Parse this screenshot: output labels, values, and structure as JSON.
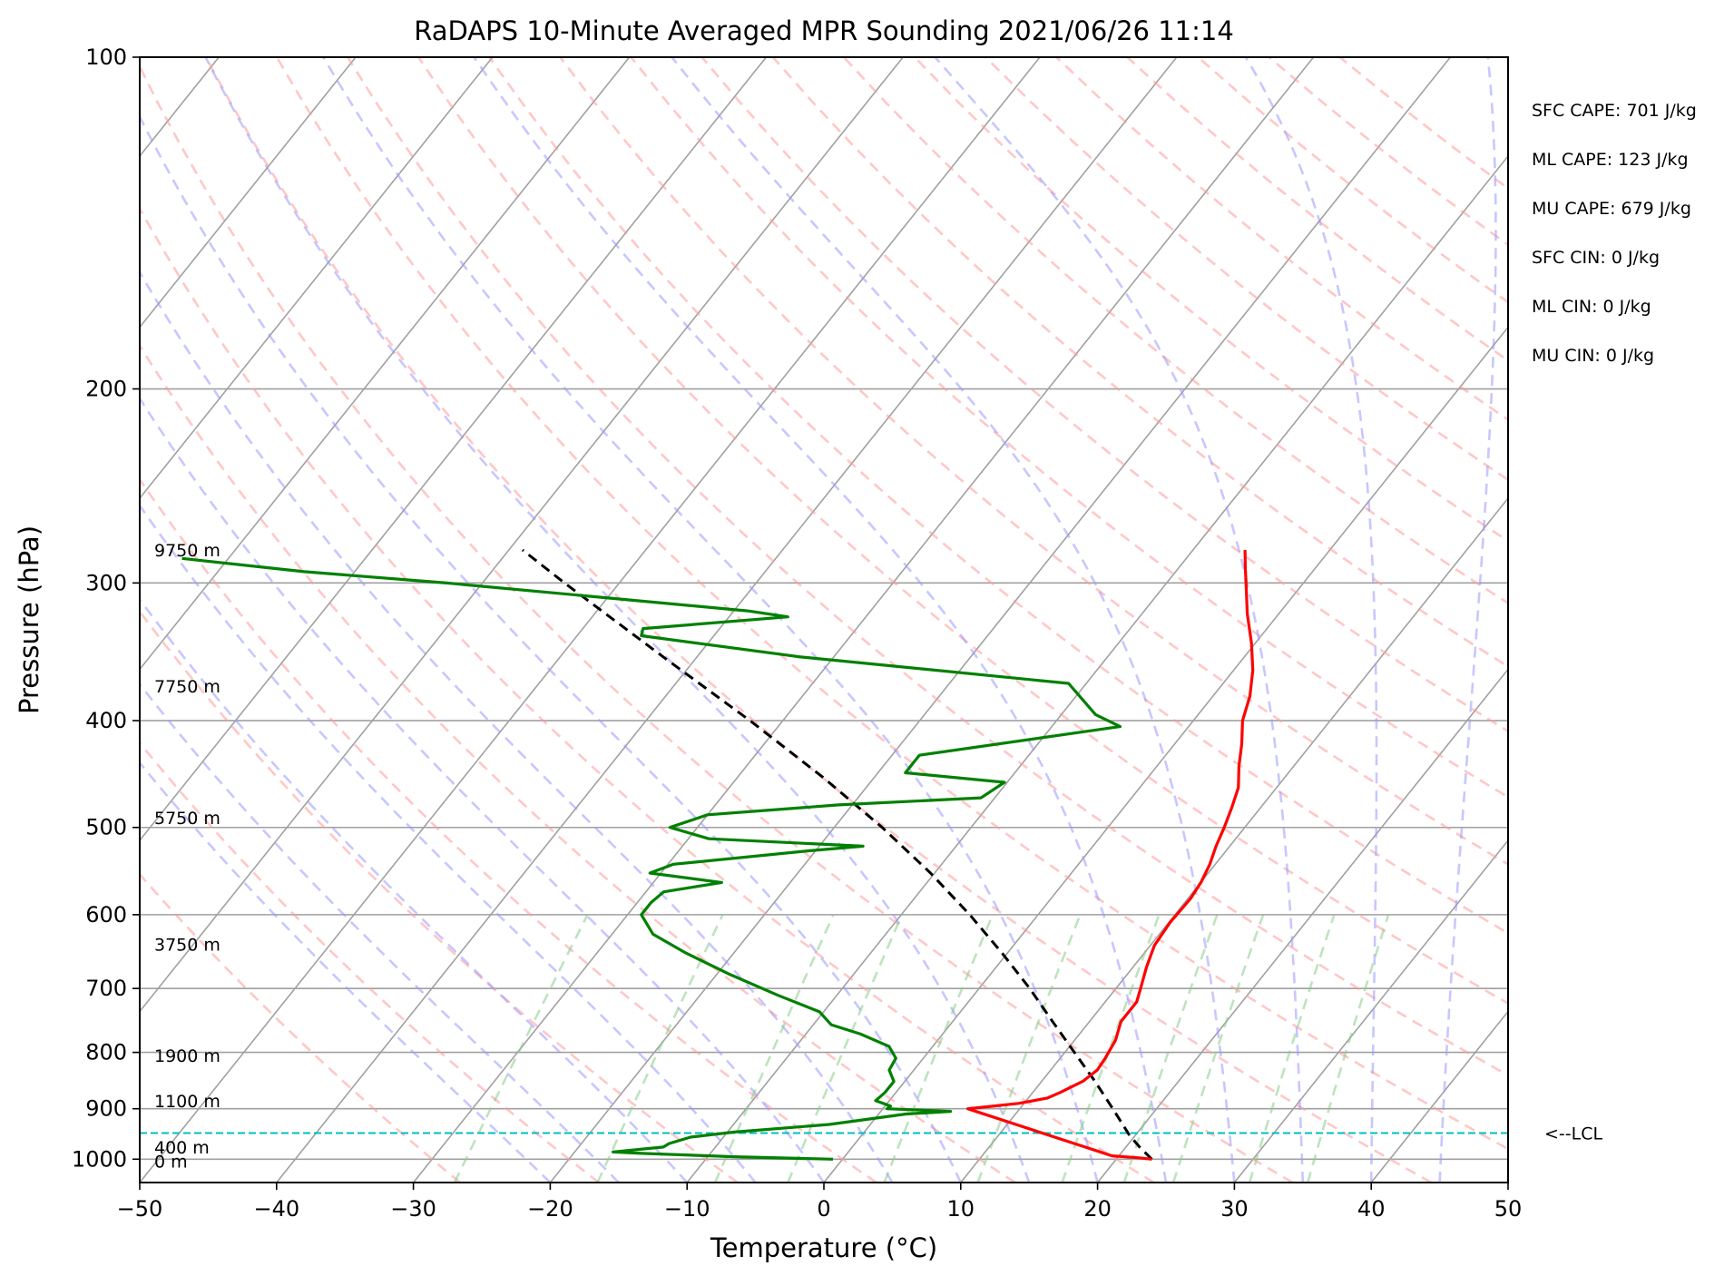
{
  "chart_data": {
    "type": "line",
    "title": "RaDAPS 10-Minute Averaged MPR Sounding 2021/06/26 11:14",
    "xlabel": "Temperature (°C)",
    "ylabel": "Pressure (hPa)",
    "xlim": [
      -50,
      50
    ],
    "ylim": [
      1050,
      100
    ],
    "y_scale": "log",
    "skew": true,
    "x_ticks": [
      -50,
      -40,
      -30,
      -20,
      -10,
      0,
      10,
      20,
      30,
      40,
      50
    ],
    "x_tick_labels": [
      "−50",
      "−40",
      "−30",
      "−20",
      "−10",
      "0",
      "10",
      "20",
      "30",
      "40",
      "50"
    ],
    "y_ticks": [
      100,
      200,
      300,
      400,
      500,
      600,
      700,
      800,
      900,
      1000
    ],
    "y_tick_labels": [
      "100",
      "200",
      "300",
      "400",
      "500",
      "600",
      "700",
      "800",
      "900",
      "1000"
    ],
    "grid": true,
    "colors": {
      "temperature": "#ff0000",
      "dewpoint": "#008000",
      "parcel": "#000000",
      "dry_adiabats": "#ff9999",
      "moist_adiabats": "#9999ff",
      "mixing_ratio": "#88cc88",
      "isotherms": "#a0a0a0",
      "lcl": "#00bfbf"
    },
    "series": [
      {
        "key": "temperature",
        "points": [
          [
            1000,
            22.6
          ],
          [
            997,
            21.5
          ],
          [
            993,
            19.5
          ],
          [
            900,
            6.2
          ],
          [
            897,
            7.3
          ],
          [
            890,
            9.6
          ],
          [
            880,
            11.4
          ],
          [
            870,
            12.0
          ],
          [
            860,
            12.5
          ],
          [
            850,
            13.0
          ],
          [
            830,
            13.4
          ],
          [
            810,
            13.3
          ],
          [
            780,
            13.0
          ],
          [
            750,
            12.3
          ],
          [
            720,
            12.3
          ],
          [
            700,
            11.8
          ],
          [
            670,
            11.0
          ],
          [
            640,
            10.3
          ],
          [
            610,
            10.1
          ],
          [
            580,
            10.2
          ],
          [
            560,
            10.0
          ],
          [
            540,
            9.6
          ],
          [
            520,
            9.0
          ],
          [
            500,
            8.5
          ],
          [
            480,
            7.9
          ],
          [
            460,
            7.2
          ],
          [
            440,
            6.0
          ],
          [
            420,
            4.9
          ],
          [
            400,
            3.6
          ],
          [
            380,
            2.7
          ],
          [
            360,
            1.4
          ],
          [
            340,
            -0.3
          ],
          [
            320,
            -2.3
          ],
          [
            300,
            -4.2
          ],
          [
            290,
            -5.2
          ],
          [
            280,
            -6.2
          ]
        ]
      },
      {
        "key": "dewpoint",
        "points": [
          [
            1000,
            -0.7
          ],
          [
            995,
            -8.0
          ],
          [
            988,
            -15.0
          ],
          [
            985,
            -17.2
          ],
          [
            975,
            -13.8
          ],
          [
            968,
            -13.6
          ],
          [
            955,
            -12.4
          ],
          [
            945,
            -9.5
          ],
          [
            930,
            -3.0
          ],
          [
            910,
            2.0
          ],
          [
            905,
            5.1
          ],
          [
            900,
            0.3
          ],
          [
            895,
            0.4
          ],
          [
            885,
            -1.0
          ],
          [
            870,
            -0.8
          ],
          [
            850,
            -0.8
          ],
          [
            830,
            -1.8
          ],
          [
            810,
            -2.0
          ],
          [
            790,
            -3.2
          ],
          [
            770,
            -6.0
          ],
          [
            755,
            -8.7
          ],
          [
            735,
            -10.3
          ],
          [
            710,
            -14.3
          ],
          [
            680,
            -19.0
          ],
          [
            650,
            -23.5
          ],
          [
            625,
            -27.0
          ],
          [
            600,
            -29.0
          ],
          [
            585,
            -29.0
          ],
          [
            572,
            -28.7
          ],
          [
            561,
            -25.0
          ],
          [
            550,
            -30.8
          ],
          [
            540,
            -29.6
          ],
          [
            525,
            -20.5
          ],
          [
            520,
            -16.8
          ],
          [
            512,
            -28.5
          ],
          [
            500,
            -32.0
          ],
          [
            487,
            -30.0
          ],
          [
            477,
            -21.0
          ],
          [
            470,
            -11.0
          ],
          [
            455,
            -10.2
          ],
          [
            446,
            -18.0
          ],
          [
            430,
            -18.0
          ],
          [
            405,
            -5.0
          ],
          [
            395,
            -7.5
          ],
          [
            370,
            -11.3
          ],
          [
            350,
            -32.6
          ],
          [
            335,
            -45.3
          ],
          [
            330,
            -45.6
          ],
          [
            322,
            -35.7
          ],
          [
            318,
            -39.0
          ],
          [
            300,
            -62.6
          ],
          [
            293,
            -73.7
          ],
          [
            285,
            -83.4
          ]
        ]
      },
      {
        "key": "parcel",
        "points": [
          [
            1000,
            22.6
          ],
          [
            975,
            21.0
          ],
          [
            950,
            19.5
          ],
          [
            900,
            16.8
          ],
          [
            850,
            13.9
          ],
          [
            800,
            10.7
          ],
          [
            750,
            7.3
          ],
          [
            700,
            3.7
          ],
          [
            650,
            -0.4
          ],
          [
            600,
            -5.0
          ],
          [
            550,
            -10.3
          ],
          [
            500,
            -16.5
          ],
          [
            450,
            -23.8
          ],
          [
            400,
            -32.4
          ],
          [
            350,
            -42.5
          ],
          [
            300,
            -54.0
          ],
          [
            280,
            -59.0
          ]
        ]
      }
    ],
    "height_labels": [
      {
        "text": "9750 m",
        "p": 280
      },
      {
        "text": "7750 m",
        "p": 372
      },
      {
        "text": "5750 m",
        "p": 490
      },
      {
        "text": "3750 m",
        "p": 638
      },
      {
        "text": "1900 m",
        "p": 805
      },
      {
        "text": "1100 m",
        "p": 885
      },
      {
        "text": "400 m",
        "p": 975
      },
      {
        "text": "0 m",
        "p": 1004
      }
    ],
    "lcl": {
      "p": 947,
      "label": "<--LCL"
    },
    "indices": [
      "SFC CAPE: 701 J/kg",
      "ML CAPE: 123 J/kg",
      "MU CAPE: 679 J/kg",
      "SFC CIN: 0 J/kg",
      "ML CIN: 0 J/kg",
      "MU CIN: 0 J/kg"
    ]
  }
}
